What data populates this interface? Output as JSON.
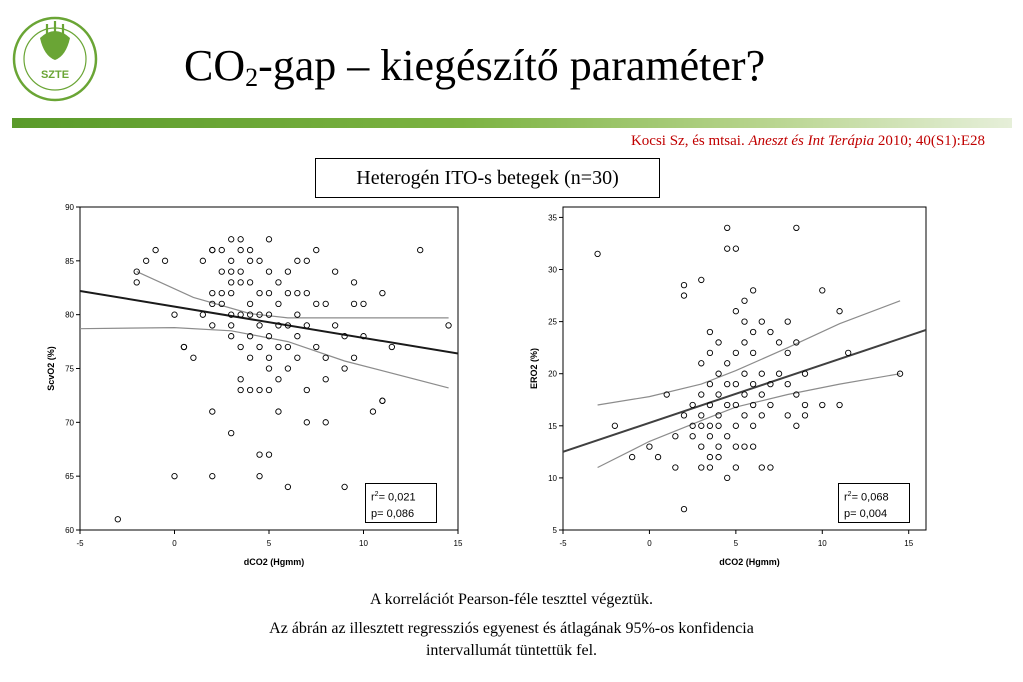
{
  "logo": {
    "text": "SZTE"
  },
  "title": {
    "prefix": "CO",
    "subscript": "2",
    "suffix": "-gap – kiegészítő paraméter?"
  },
  "citation": {
    "authors": "Kocsi Sz, és mtsai.",
    "journal": "Aneszt és Int Terápia",
    "details": "2010; 40(S1):E28"
  },
  "group_label": "Heterogén ITO-s betegek (n=30)",
  "footnote": {
    "line1": "A korrelációt Pearson-féle teszttel végeztük.",
    "line2": "Az ábrán az illesztett regressziós egyenest és átlagának 95%-os konfidencia",
    "line3": "intervallumát tüntettük fel."
  },
  "colors": {
    "accent": "#7cb342",
    "citation": "#c00000",
    "left_fit": "#1a1a1a",
    "right_fit": "#404040",
    "ci": "#8c8c8c"
  },
  "chart_data": [
    {
      "type": "scatter",
      "xlabel": "dCO2 (Hgmm)",
      "ylabel": "ScvO2 (%)",
      "xlim": [
        -5,
        15
      ],
      "ylim": [
        60,
        90
      ],
      "xticks": [
        -5,
        0,
        5,
        10,
        15
      ],
      "yticks": [
        60,
        65,
        70,
        75,
        80,
        85,
        90
      ],
      "stats": {
        "r2": "= 0,021",
        "p": "p= 0,086"
      },
      "regression": {
        "x1": -5,
        "y1": 82.2,
        "x2": 16,
        "y2": 76.1
      },
      "ci_upper": [
        [
          -2,
          84.0
        ],
        [
          1,
          81.6
        ],
        [
          4,
          80.1
        ],
        [
          6,
          79.7
        ],
        [
          9,
          79.7
        ],
        [
          14.5,
          79.7
        ]
      ],
      "ci_lower": [
        [
          -5,
          78.7
        ],
        [
          0,
          78.8
        ],
        [
          3,
          78.5
        ],
        [
          6,
          77.5
        ],
        [
          9,
          75.7
        ],
        [
          14.5,
          73.2
        ]
      ],
      "points": [
        [
          -3,
          61
        ],
        [
          -2,
          83
        ],
        [
          -2,
          84
        ],
        [
          -1.5,
          85
        ],
        [
          -1,
          86
        ],
        [
          -0.5,
          85
        ],
        [
          0,
          80
        ],
        [
          0,
          65
        ],
        [
          0.5,
          77
        ],
        [
          0.5,
          77
        ],
        [
          1,
          76
        ],
        [
          1.5,
          85
        ],
        [
          1.5,
          80
        ],
        [
          2,
          86
        ],
        [
          2,
          86
        ],
        [
          2,
          82
        ],
        [
          2,
          81
        ],
        [
          2,
          79
        ],
        [
          2,
          71
        ],
        [
          2,
          65
        ],
        [
          2.5,
          86
        ],
        [
          2.5,
          84
        ],
        [
          2.5,
          82
        ],
        [
          2.5,
          81
        ],
        [
          3,
          87
        ],
        [
          3,
          85
        ],
        [
          3,
          84
        ],
        [
          3,
          83
        ],
        [
          3,
          82
        ],
        [
          3,
          80
        ],
        [
          3,
          79
        ],
        [
          3,
          78
        ],
        [
          3,
          69
        ],
        [
          3.5,
          87
        ],
        [
          3.5,
          86
        ],
        [
          3.5,
          84
        ],
        [
          3.5,
          83
        ],
        [
          3.5,
          80
        ],
        [
          3.5,
          77
        ],
        [
          3.5,
          74
        ],
        [
          3.5,
          73
        ],
        [
          4,
          86
        ],
        [
          4,
          85
        ],
        [
          4,
          83
        ],
        [
          4,
          81
        ],
        [
          4,
          80
        ],
        [
          4,
          78
        ],
        [
          4,
          76
        ],
        [
          4,
          73
        ],
        [
          4.5,
          85
        ],
        [
          4.5,
          82
        ],
        [
          4.5,
          80
        ],
        [
          4.5,
          79
        ],
        [
          4.5,
          77
        ],
        [
          4.5,
          73
        ],
        [
          4.5,
          67
        ],
        [
          4.5,
          65
        ],
        [
          5,
          87
        ],
        [
          5,
          84
        ],
        [
          5,
          82
        ],
        [
          5,
          80
        ],
        [
          5,
          78
        ],
        [
          5,
          76
        ],
        [
          5,
          75
        ],
        [
          5,
          73
        ],
        [
          5,
          67
        ],
        [
          5.5,
          83
        ],
        [
          5.5,
          81
        ],
        [
          5.5,
          79
        ],
        [
          5.5,
          77
        ],
        [
          5.5,
          74
        ],
        [
          5.5,
          71
        ],
        [
          6,
          84
        ],
        [
          6,
          82
        ],
        [
          6,
          79
        ],
        [
          6,
          77
        ],
        [
          6,
          75
        ],
        [
          6,
          64
        ],
        [
          6.5,
          85
        ],
        [
          6.5,
          82
        ],
        [
          6.5,
          80
        ],
        [
          6.5,
          78
        ],
        [
          6.5,
          76
        ],
        [
          7,
          85
        ],
        [
          7,
          82
        ],
        [
          7,
          79
        ],
        [
          7,
          73
        ],
        [
          7,
          70
        ],
        [
          7.5,
          86
        ],
        [
          7.5,
          81
        ],
        [
          7.5,
          77
        ],
        [
          8,
          81
        ],
        [
          8,
          76
        ],
        [
          8,
          74
        ],
        [
          8,
          70
        ],
        [
          8.5,
          84
        ],
        [
          8.5,
          79
        ],
        [
          9,
          78
        ],
        [
          9,
          75
        ],
        [
          9,
          64
        ],
        [
          9.5,
          83
        ],
        [
          9.5,
          81
        ],
        [
          9.5,
          76
        ],
        [
          10,
          81
        ],
        [
          10,
          78
        ],
        [
          10.5,
          71
        ],
        [
          11,
          82
        ],
        [
          11,
          72
        ],
        [
          11,
          72
        ],
        [
          11.5,
          77
        ],
        [
          13,
          86
        ],
        [
          14.5,
          79
        ]
      ]
    },
    {
      "type": "scatter",
      "xlabel": "dCO2 (Hgmm)",
      "ylabel": "ERO2 (%)",
      "xlim": [
        -5,
        16
      ],
      "ylim": [
        5,
        36
      ],
      "xticks": [
        -5,
        0,
        5,
        10,
        15
      ],
      "yticks": [
        5,
        10,
        15,
        20,
        25,
        30,
        35
      ],
      "stats": {
        "r2": "= 0,068",
        "p": "p= 0,004"
      },
      "regression": {
        "x1": -5,
        "y1": 12.5,
        "x2": 16,
        "y2": 24.2
      },
      "ci_upper": [
        [
          -3,
          17.0
        ],
        [
          0,
          17.8
        ],
        [
          3,
          19.0
        ],
        [
          5,
          20.3
        ],
        [
          8,
          22.5
        ],
        [
          11,
          24.8
        ],
        [
          14.5,
          27.0
        ]
      ],
      "ci_lower": [
        [
          -3,
          11.0
        ],
        [
          0,
          13.5
        ],
        [
          3,
          15.5
        ],
        [
          5,
          16.8
        ],
        [
          8,
          18.0
        ],
        [
          11,
          19.0
        ],
        [
          14.5,
          20.0
        ]
      ],
      "points": [
        [
          -3,
          31.5
        ],
        [
          -2,
          15
        ],
        [
          -1,
          12
        ],
        [
          0,
          13
        ],
        [
          0.5,
          12
        ],
        [
          1,
          18
        ],
        [
          1.5,
          14
        ],
        [
          1.5,
          11
        ],
        [
          2,
          28.5
        ],
        [
          2,
          27.5
        ],
        [
          2,
          16
        ],
        [
          2,
          7
        ],
        [
          2.5,
          17
        ],
        [
          2.5,
          15
        ],
        [
          2.5,
          14
        ],
        [
          3,
          29
        ],
        [
          3,
          21
        ],
        [
          3,
          18
        ],
        [
          3,
          16
        ],
        [
          3,
          15
        ],
        [
          3,
          13
        ],
        [
          3,
          11
        ],
        [
          3.5,
          24
        ],
        [
          3.5,
          22
        ],
        [
          3.5,
          19
        ],
        [
          3.5,
          17
        ],
        [
          3.5,
          15
        ],
        [
          3.5,
          14
        ],
        [
          3.5,
          12
        ],
        [
          3.5,
          11
        ],
        [
          4,
          23
        ],
        [
          4,
          20
        ],
        [
          4,
          18
        ],
        [
          4,
          16
        ],
        [
          4,
          15
        ],
        [
          4,
          13
        ],
        [
          4,
          12
        ],
        [
          4.5,
          34
        ],
        [
          4.5,
          32
        ],
        [
          4.5,
          21
        ],
        [
          4.5,
          19
        ],
        [
          4.5,
          17
        ],
        [
          4.5,
          14
        ],
        [
          4.5,
          10
        ],
        [
          5,
          32
        ],
        [
          5,
          26
        ],
        [
          5,
          22
        ],
        [
          5,
          19
        ],
        [
          5,
          17
        ],
        [
          5,
          15
        ],
        [
          5,
          13
        ],
        [
          5,
          11
        ],
        [
          5.5,
          27
        ],
        [
          5.5,
          25
        ],
        [
          5.5,
          23
        ],
        [
          5.5,
          20
        ],
        [
          5.5,
          18
        ],
        [
          5.5,
          16
        ],
        [
          5.5,
          13
        ],
        [
          6,
          28
        ],
        [
          6,
          24
        ],
        [
          6,
          22
        ],
        [
          6,
          19
        ],
        [
          6,
          17
        ],
        [
          6,
          15
        ],
        [
          6,
          13
        ],
        [
          6.5,
          25
        ],
        [
          6.5,
          20
        ],
        [
          6.5,
          18
        ],
        [
          6.5,
          16
        ],
        [
          6.5,
          11
        ],
        [
          7,
          24
        ],
        [
          7,
          19
        ],
        [
          7,
          17
        ],
        [
          7,
          11
        ],
        [
          7.5,
          23
        ],
        [
          7.5,
          20
        ],
        [
          8,
          25
        ],
        [
          8,
          22
        ],
        [
          8,
          19
        ],
        [
          8,
          16
        ],
        [
          8.5,
          34
        ],
        [
          8.5,
          23
        ],
        [
          8.5,
          18
        ],
        [
          8.5,
          15
        ],
        [
          9,
          20
        ],
        [
          9,
          17
        ],
        [
          9,
          16
        ],
        [
          10,
          28
        ],
        [
          10,
          17
        ],
        [
          11,
          26
        ],
        [
          11,
          17
        ],
        [
          11.5,
          22
        ],
        [
          14.5,
          20
        ]
      ]
    }
  ]
}
